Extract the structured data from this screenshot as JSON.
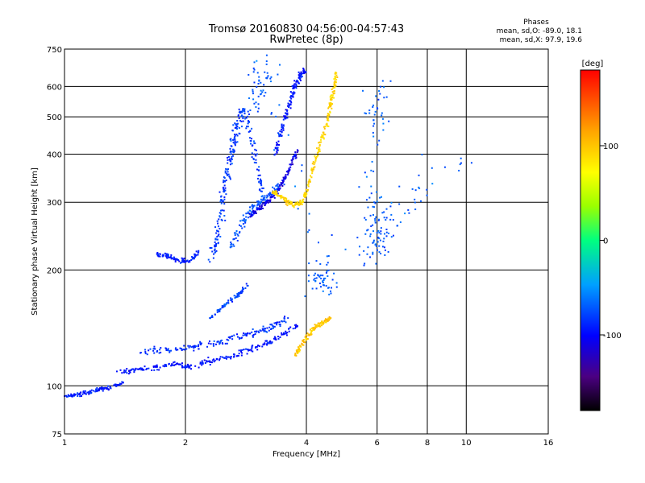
{
  "chart_data": {
    "type": "scatter",
    "title": "Tromsø 20160830 04:56:00-04:57:43",
    "subtitle": "RwPretec (8p)",
    "xlabel": "Frequency [MHz]",
    "ylabel": "Stationary phase Virtual Height [km]",
    "x_scale": "log",
    "y_scale": "log",
    "xlim": [
      1,
      16
    ],
    "ylim": [
      75,
      750
    ],
    "x_ticks": [
      "1",
      "2",
      "4",
      "6",
      "8",
      "10",
      "16"
    ],
    "y_ticks": [
      "75",
      "100",
      "200",
      "300",
      "400",
      "500",
      "600",
      "750"
    ],
    "grid": true,
    "phases": {
      "heading": "Phases",
      "o_line": "mean, sd,O: -89.0, 18.1",
      "x_line": "mean, sd,X:  97.9, 19.6"
    },
    "colorbar": {
      "label": "[deg]",
      "ticks": [
        "100",
        "0",
        "-100"
      ],
      "range": [
        -180,
        180
      ]
    },
    "traces": [
      {
        "name": "",
        "phase": -92,
        "spread": 0.05,
        "pts": [
          [
            1.0,
            94
          ],
          [
            1.08,
            95
          ],
          [
            1.15,
            96
          ],
          [
            1.22,
            98
          ],
          [
            1.3,
            99
          ],
          [
            1.4,
            102
          ]
        ]
      },
      {
        "name": "",
        "phase": -95,
        "spread": 0.07,
        "pts": [
          [
            1.35,
            109
          ],
          [
            1.5,
            110
          ],
          [
            1.7,
            112
          ],
          [
            1.9,
            114
          ],
          [
            2.05,
            112
          ],
          [
            2.3,
            116
          ],
          [
            2.6,
            119
          ],
          [
            2.9,
            124
          ],
          [
            3.2,
            129
          ],
          [
            3.5,
            136
          ],
          [
            3.8,
            143
          ]
        ]
      },
      {
        "name": "",
        "phase": -85,
        "spread": 0.09,
        "pts": [
          [
            1.55,
            122
          ],
          [
            1.8,
            124
          ],
          [
            2.1,
            126
          ],
          [
            2.4,
            130
          ],
          [
            2.7,
            134
          ],
          [
            3.0,
            138
          ],
          [
            3.3,
            143
          ],
          [
            3.6,
            150
          ]
        ]
      },
      {
        "name": "",
        "phase": -78,
        "spread": 0.05,
        "pts": [
          [
            2.3,
            150
          ],
          [
            2.5,
            162
          ],
          [
            2.7,
            172
          ],
          [
            2.85,
            182
          ]
        ]
      },
      {
        "name": "",
        "phase": 100,
        "spread": 0.06,
        "pts": [
          [
            3.75,
            120
          ],
          [
            3.9,
            128
          ],
          [
            4.05,
            136
          ],
          [
            4.2,
            142
          ],
          [
            4.4,
            146
          ],
          [
            4.6,
            150
          ]
        ]
      },
      {
        "name": "",
        "phase": -92,
        "spread": 0.06,
        "pts": [
          [
            1.7,
            220
          ],
          [
            1.8,
            218
          ],
          [
            1.9,
            213
          ],
          [
            2.05,
            210
          ],
          [
            2.15,
            222
          ]
        ]
      },
      {
        "name": "",
        "phase": -82,
        "spread": 0.12,
        "pts": [
          [
            2.3,
            210
          ],
          [
            2.4,
            240
          ],
          [
            2.45,
            280
          ],
          [
            2.5,
            320
          ],
          [
            2.55,
            360
          ],
          [
            2.6,
            400
          ],
          [
            2.65,
            440
          ],
          [
            2.7,
            480
          ],
          [
            2.8,
            520
          ],
          [
            2.9,
            460
          ],
          [
            3.0,
            380
          ],
          [
            3.1,
            320
          ]
        ]
      },
      {
        "name": "",
        "phase": -72,
        "spread": 0.1,
        "pts": [
          [
            2.6,
            230
          ],
          [
            2.75,
            260
          ],
          [
            2.9,
            285
          ],
          [
            3.05,
            300
          ],
          [
            3.2,
            310
          ],
          [
            3.4,
            330
          ]
        ]
      },
      {
        "name": "",
        "phase": -110,
        "spread": 0.06,
        "pts": [
          [
            2.9,
            275
          ],
          [
            3.05,
            290
          ],
          [
            3.2,
            300
          ],
          [
            3.35,
            315
          ],
          [
            3.5,
            340
          ],
          [
            3.65,
            370
          ],
          [
            3.8,
            410
          ]
        ]
      },
      {
        "name": "",
        "phase": -95,
        "spread": 0.07,
        "pts": [
          [
            3.35,
            400
          ],
          [
            3.45,
            450
          ],
          [
            3.55,
            500
          ],
          [
            3.65,
            550
          ],
          [
            3.75,
            600
          ],
          [
            3.85,
            640
          ],
          [
            3.95,
            660
          ]
        ]
      },
      {
        "name": "",
        "phase": 92,
        "spread": 0.06,
        "pts": [
          [
            3.3,
            320
          ],
          [
            3.45,
            310
          ],
          [
            3.6,
            300
          ],
          [
            3.75,
            295
          ],
          [
            3.9,
            300
          ],
          [
            4.05,
            330
          ],
          [
            4.2,
            380
          ],
          [
            4.35,
            430
          ],
          [
            4.5,
            480
          ],
          [
            4.6,
            540
          ],
          [
            4.7,
            600
          ],
          [
            4.75,
            650
          ]
        ]
      },
      {
        "name": "",
        "phase": -70,
        "spread": 0.5,
        "pts": [
          [
            5.9,
            480
          ],
          [
            6.2,
            620
          ],
          [
            5.9,
            300
          ],
          [
            6.0,
            250
          ],
          [
            5.85,
            220
          ],
          [
            6.3,
            270
          ],
          [
            9.7,
            390
          ],
          [
            4.2,
            190
          ],
          [
            4.35,
            190
          ],
          [
            4.55,
            180
          ],
          [
            3.05,
            620
          ],
          [
            3.2,
            650
          ],
          [
            2.9,
            520
          ]
        ]
      }
    ]
  }
}
